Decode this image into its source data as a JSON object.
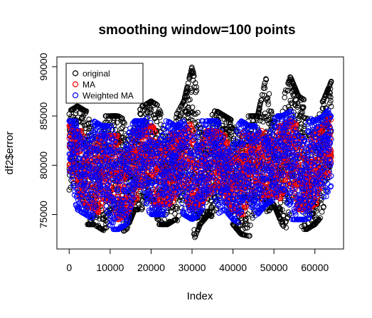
{
  "chart_data": {
    "type": "scatter",
    "title": "smoothing window=100 points",
    "xlabel": "Index",
    "ylabel": "df2$error",
    "xlim": [
      -3000,
      67000
    ],
    "ylim": [
      71500,
      91000
    ],
    "x_ticks": [
      0,
      10000,
      20000,
      30000,
      40000,
      50000,
      60000
    ],
    "y_ticks": [
      75000,
      80000,
      85000,
      90000
    ],
    "x_tick_labels": [
      "0",
      "10000",
      "20000",
      "30000",
      "40000",
      "50000",
      "60000"
    ],
    "y_tick_labels": [
      "75000",
      "80000",
      "85000",
      "90000"
    ],
    "legend_position": "top-left",
    "grid": false,
    "series": [
      {
        "name": "original",
        "color": "#000000",
        "marker": "open-circle",
        "x": [
          0,
          2000,
          4000,
          6000,
          8000,
          10000,
          12000,
          14000,
          16000,
          18000,
          20000,
          22000,
          24000,
          26000,
          28000,
          30000,
          32000,
          34000,
          36000,
          38000,
          40000,
          42000,
          44000,
          46000,
          48000,
          50000,
          52000,
          54000,
          56000,
          58000,
          60000,
          62000,
          64000
        ],
        "y_min": [
          77500,
          75500,
          74000,
          74000,
          73500,
          73000,
          73000,
          73500,
          75500,
          75500,
          74000,
          74000,
          74000,
          74500,
          74000,
          72000,
          74000,
          75000,
          74500,
          75000,
          74000,
          73000,
          72800,
          74000,
          75000,
          76000,
          74000,
          73000,
          73500,
          73500,
          74000,
          75000,
          78000
        ],
        "y_max": [
          85500,
          86000,
          85500,
          85500,
          85000,
          85000,
          85000,
          84500,
          86000,
          86000,
          86500,
          86000,
          85500,
          85000,
          86500,
          90000,
          86000,
          85500,
          85500,
          85000,
          84500,
          86500,
          85000,
          85000,
          88800,
          87000,
          86500,
          89000,
          87000,
          86500,
          86000,
          86500,
          88500
        ]
      },
      {
        "name": "MA",
        "color": "#ff0000",
        "marker": "open-circle",
        "x": [
          0,
          2000,
          4000,
          6000,
          8000,
          10000,
          12000,
          14000,
          16000,
          18000,
          20000,
          22000,
          24000,
          26000,
          28000,
          30000,
          32000,
          34000,
          36000,
          38000,
          40000,
          42000,
          44000,
          46000,
          48000,
          50000,
          52000,
          54000,
          56000,
          58000,
          60000,
          62000,
          64000
        ],
        "y_min": [
          78500,
          76500,
          76000,
          75500,
          75000,
          74500,
          74500,
          75000,
          76500,
          76500,
          76000,
          76000,
          76000,
          76000,
          76000,
          75500,
          76000,
          76500,
          76000,
          76500,
          75500,
          75000,
          75000,
          76000,
          77000,
          77000,
          76500,
          75500,
          75500,
          75500,
          76000,
          76500,
          78500
        ],
        "y_max": [
          84000,
          83500,
          83500,
          83500,
          83000,
          83000,
          83000,
          82500,
          83500,
          83500,
          84000,
          83500,
          83500,
          83000,
          83500,
          84500,
          83500,
          83500,
          83500,
          83000,
          82500,
          83500,
          83000,
          83000,
          84000,
          84000,
          84000,
          84500,
          84000,
          84000,
          83500,
          84000,
          85000
        ]
      },
      {
        "name": "Weighted MA",
        "color": "#0000ff",
        "marker": "open-circle",
        "x": [
          0,
          2000,
          4000,
          6000,
          8000,
          10000,
          12000,
          14000,
          16000,
          18000,
          20000,
          22000,
          24000,
          26000,
          28000,
          30000,
          32000,
          34000,
          36000,
          38000,
          40000,
          42000,
          44000,
          46000,
          48000,
          50000,
          52000,
          54000,
          56000,
          58000,
          60000,
          62000,
          64000
        ],
        "y_min": [
          78000,
          75500,
          75000,
          74500,
          74000,
          73500,
          73500,
          74000,
          76000,
          76000,
          75000,
          75000,
          75000,
          75500,
          75000,
          74500,
          75000,
          75500,
          75000,
          75500,
          74500,
          74000,
          74000,
          75000,
          76000,
          76500,
          75500,
          74500,
          74500,
          74500,
          75000,
          75500,
          78000
        ],
        "y_max": [
          84500,
          84500,
          84500,
          84500,
          84000,
          84000,
          84000,
          83500,
          84500,
          84500,
          85000,
          84500,
          84500,
          84000,
          84500,
          85500,
          84500,
          84500,
          84500,
          84000,
          83500,
          84500,
          84000,
          84000,
          85000,
          85000,
          85000,
          85500,
          85000,
          85000,
          84500,
          85000,
          86000
        ]
      }
    ]
  }
}
